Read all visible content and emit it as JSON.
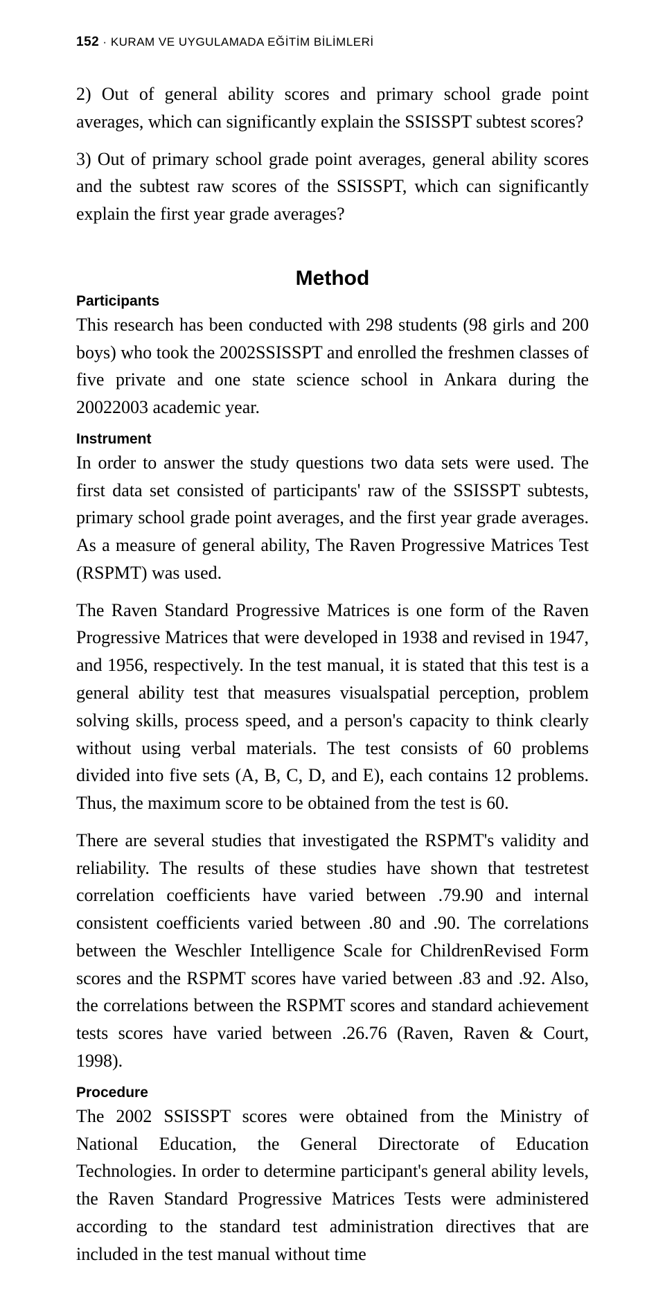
{
  "header": {
    "page_number": "152",
    "separator": " · ",
    "title": "KURAM VE UYGULAMADA EĞİTİM BİLİMLERİ"
  },
  "paragraphs": {
    "p1": "2) Out of general ability scores and primary school grade point averages, which can significantly explain the SSISSPT subtest scores?",
    "p2": "3) Out of primary school grade point averages, general ability scores and the subtest raw scores of the SSISSPT, which can significantly explain the first year grade averages?"
  },
  "method": {
    "heading": "Method",
    "participants_heading": "Participants",
    "participants_body": "This research has been conducted with 298 students (98 girls and 200 boys) who took the 2002SSISSPT and enrolled the freshmen classes of five private and one state science school in Ankara during the 20022003 academic year.",
    "instrument_heading": "Instrument",
    "instrument_p1": "In order to answer the study questions two data sets were used. The first data set consisted of participants' raw of the SSISSPT subtests, primary school grade point averages, and the first year grade averages. As a measure of general ability, The Raven Progressive Matrices Test (RSPMT) was used.",
    "instrument_p2": "The Raven Standard Progressive Matrices is one form of the Raven Progressive Matrices that were developed in 1938 and revised in 1947, and 1956, respectively. In the test manual, it is stated that this test is a general ability test that measures visualspatial perception, problem solving skills, process speed, and a person's capacity to think clearly without using verbal materials. The test consists of 60 problems divided into five sets (A, B, C, D, and E), each contains 12 problems. Thus, the maximum score to be obtained from the test is 60.",
    "instrument_p3": "There are several studies that investigated the RSPMT's validity and reliability. The results of these studies have shown that testretest correlation coefficients have varied between .79.90 and internal consistent coefficients varied between .80 and .90. The correlations between the Weschler Intelligence Scale for ChildrenRevised Form scores and the RSPMT scores have varied between .83 and .92. Also, the correlations between the RSPMT scores and standard achievement tests scores have varied between .26.76 (Raven, Raven & Court, 1998).",
    "procedure_heading": "Procedure",
    "procedure_body": "The 2002 SSISSPT scores were obtained from the Ministry of National Education, the General Directorate of Education Technologies. In order to determine participant's general ability levels, the Raven Standard Progressive Matrices Tests were administered according to the standard test administration directives that are included in the test manual without time"
  }
}
